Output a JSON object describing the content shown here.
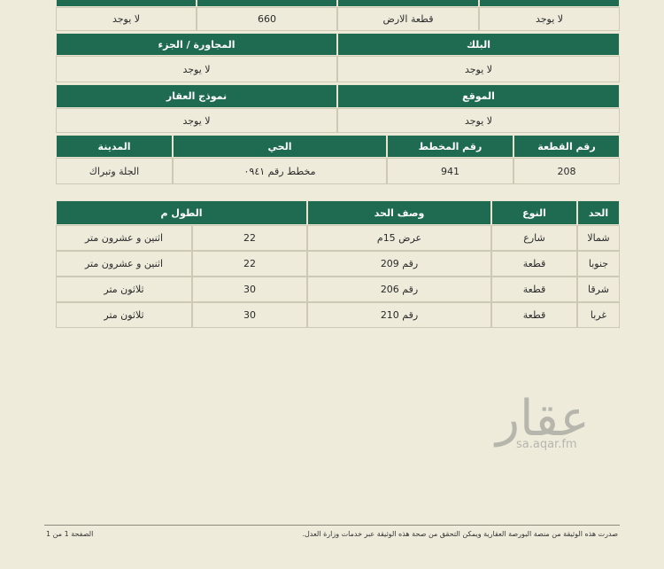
{
  "table_1": {
    "rows": [
      [
        "لا يوجد",
        "قطعة الارض",
        660,
        "لا يوجد"
      ]
    ]
  },
  "table_2": {
    "sections": [
      {
        "headers": [
          "البلك",
          "المجاورة / الجزء"
        ],
        "values": [
          "لا يوجد",
          "لا يوجد"
        ]
      },
      {
        "headers": [
          "الموقع",
          "نموذج العقار"
        ],
        "values": [
          "لا يوجد",
          "لا يوجد"
        ]
      }
    ]
  },
  "table_3": {
    "headers": [
      "رقم القطعة",
      "رقم المخطط",
      "الحي",
      "المدينة"
    ],
    "rows": [
      [
        208,
        941,
        "مخطط رقم ٠٩٤١",
        "الجلة وتبراك"
      ]
    ]
  },
  "table_4": {
    "headers": [
      "الحد",
      "النوع",
      "وصف الحد",
      "الطول م"
    ],
    "rows": [
      [
        "شمالا",
        "شارع",
        "عرض 15م",
        22,
        "اثنين و عشرون متر"
      ],
      [
        "جنوبا",
        "قطعة",
        "رقم 209",
        22,
        "اثنين و عشرون متر"
      ],
      [
        "شرقا",
        "قطعة",
        "رقم 206",
        30,
        "ثلاثون متر"
      ],
      [
        "غربا",
        "قطعة",
        "رقم 210",
        30,
        "ثلاثون متر"
      ]
    ]
  },
  "watermark": {
    "logo": "عقار",
    "url": "sa.aqar.fm"
  },
  "footer": {
    "note": "صدرت هذه الوثيقة من منصة البورصة العقارية ويمكن التحقق من صحة هذه الوثيقة عبر خدمات وزارة العدل.",
    "page": "الصفحة 1 من 1"
  }
}
